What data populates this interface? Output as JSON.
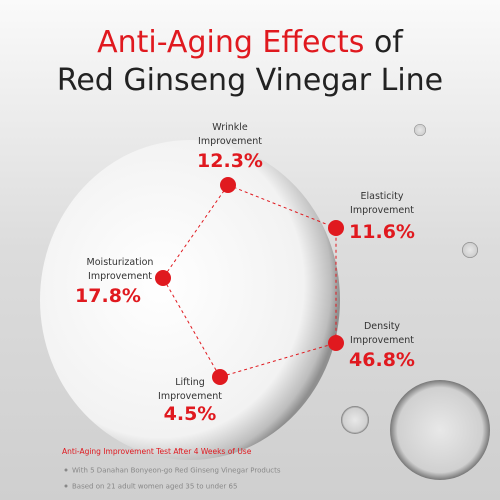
{
  "header": {
    "title_highlight": "Anti-Aging Effects",
    "title_rest": "of",
    "title_line2": "Red Ginseng Vinegar Line"
  },
  "nodes": [
    {
      "label_line1": "Wrinkle",
      "label_line2": "Improvement",
      "value": "12.3%"
    },
    {
      "label_line1": "Elasticity",
      "label_line2": "Improvement",
      "value": "11.6%"
    },
    {
      "label_line1": "Density",
      "label_line2": "Improvement",
      "value": "46.8%"
    },
    {
      "label_line1": "Lifting",
      "label_line2": "Improvement",
      "value": "4.5%"
    },
    {
      "label_line1": "Moisturization",
      "label_line2": "Improvement",
      "value": "17.8%"
    }
  ],
  "footer": {
    "heading": "Anti-Aging Improvement Test After 4 Weeks of Use",
    "bullets": [
      "With 5 Danahan Bonyeon-go Red Ginseng Vinegar Products",
      "Based on 21 adult women aged 35 to under 65"
    ]
  }
}
